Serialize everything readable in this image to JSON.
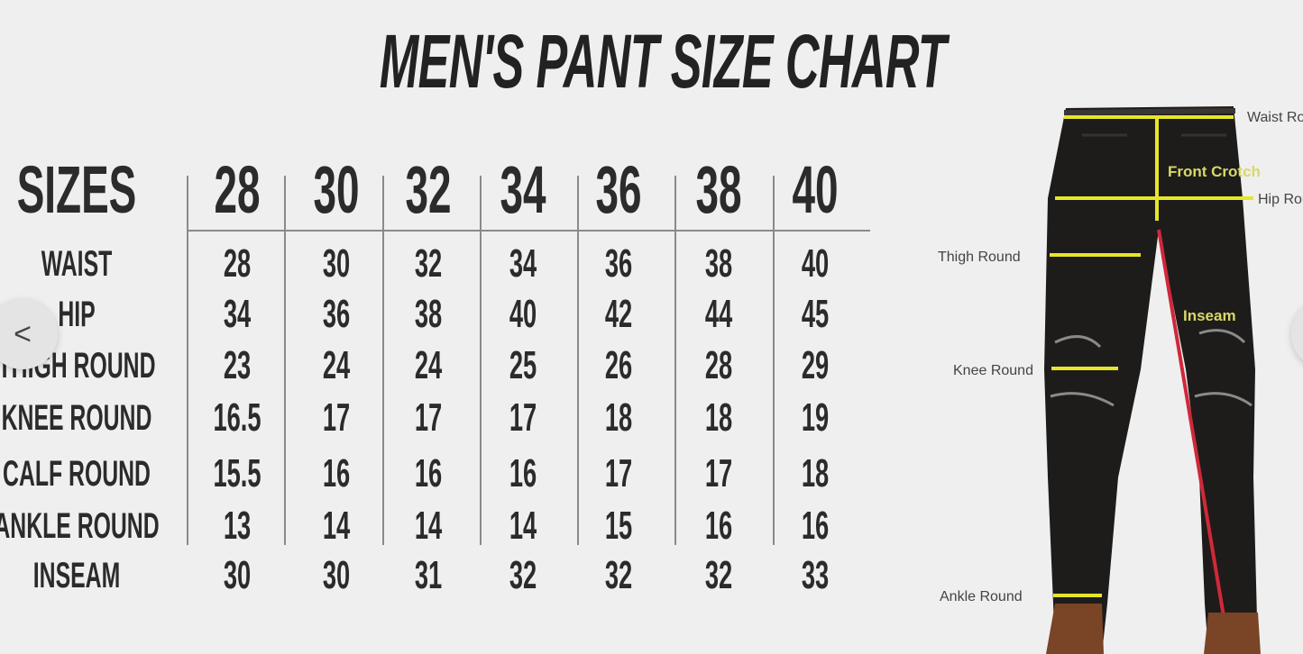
{
  "title": "MEN'S PANT SIZE CHART",
  "table": {
    "header_label": "SIZES",
    "sizes": [
      "28",
      "30",
      "32",
      "34",
      "36",
      "38",
      "40"
    ],
    "rows": [
      {
        "label": "WAIST",
        "values": [
          "28",
          "30",
          "32",
          "34",
          "36",
          "38",
          "40"
        ]
      },
      {
        "label": "HIP",
        "values": [
          "34",
          "36",
          "38",
          "40",
          "42",
          "44",
          "45"
        ]
      },
      {
        "label": "THIGH ROUND",
        "values": [
          "23",
          "24",
          "24",
          "25",
          "26",
          "28",
          "29"
        ]
      },
      {
        "label": "KNEE ROUND",
        "values": [
          "16.5",
          "17",
          "17",
          "17",
          "18",
          "18",
          "19"
        ]
      },
      {
        "label": "CALF ROUND",
        "values": [
          "15.5",
          "16",
          "16",
          "16",
          "17",
          "17",
          "18"
        ]
      },
      {
        "label": "ANKLE ROUND",
        "values": [
          "13",
          "14",
          "14",
          "14",
          "15",
          "16",
          "16"
        ]
      },
      {
        "label": "INSEAM",
        "values": [
          "30",
          "30",
          "31",
          "32",
          "32",
          "32",
          "33"
        ]
      }
    ]
  },
  "diagram": {
    "labels": {
      "waist": "Waist Round",
      "front_crotch": "Front Crotch",
      "hip": "Hip Round",
      "thigh": "Thigh Round",
      "inseam": "Inseam",
      "knee": "Knee Round",
      "ankle": "Ankle Round"
    },
    "colors": {
      "measure_line": "#e6e629",
      "inseam_line": "#d0283a",
      "pants": "#1e1c1b"
    }
  },
  "carousel": {
    "prev_icon": "chevron-left-icon",
    "next_icon": "chevron-right-icon",
    "prev_glyph": "<"
  }
}
